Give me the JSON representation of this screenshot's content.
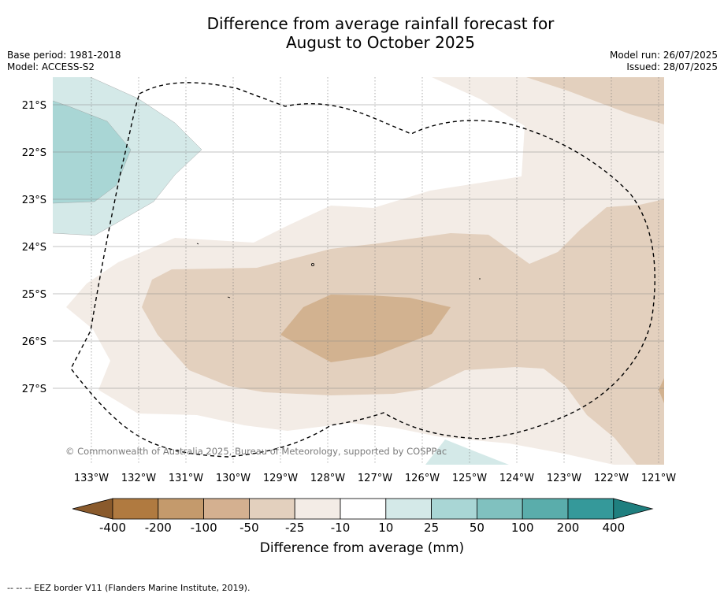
{
  "title_line1": "Difference from average rainfall forecast for",
  "title_line2": "August to October 2025",
  "left_meta": {
    "base_period": "Base period: 1981-2018",
    "model": "Model: ACCESS-S2"
  },
  "right_meta": {
    "model_run": "Model run: 26/07/2025",
    "issued": "Issued: 28/07/2025"
  },
  "copyright": "© Commonwealth of Australia 2025, Bureau of Meteorology, supported by COSPPac",
  "lat_labels": [
    "21°S",
    "22°S",
    "23°S",
    "24°S",
    "25°S",
    "26°S",
    "27°S"
  ],
  "lon_labels": [
    "133°W",
    "132°W",
    "131°W",
    "130°W",
    "129°W",
    "128°W",
    "127°W",
    "126°W",
    "125°W",
    "124°W",
    "123°W",
    "122°W",
    "121°W"
  ],
  "colorbar": {
    "title": "Difference from average (mm)",
    "tick_labels": [
      "-400",
      "-200",
      "-100",
      "-50",
      "-25",
      "-10",
      "10",
      "25",
      "50",
      "100",
      "200",
      "400"
    ],
    "colors": [
      "#8a5a2c",
      "#b07a40",
      "#c49a6c",
      "#d4b090",
      "#e3d0be",
      "#f3ece6",
      "#ffffff",
      "#d4e9e8",
      "#a9d6d5",
      "#80c1bf",
      "#5aadab",
      "#35999a",
      "#1f7f7f"
    ]
  },
  "footer": "--  --  -- EEZ border V11 (Flanders Marine Institute, 2019)."
}
